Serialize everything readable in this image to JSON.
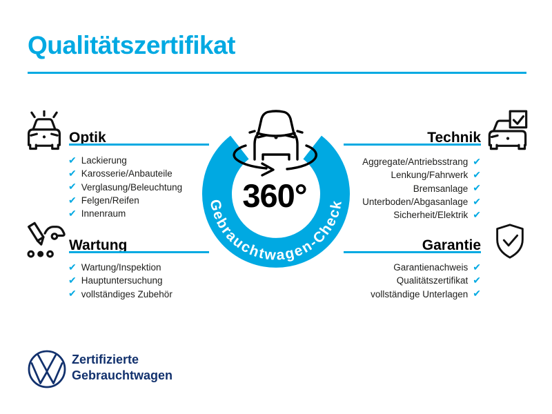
{
  "page": {
    "title": "Qualitätszertifikat",
    "accent_color": "#00a9e2",
    "navy_color": "#12316d"
  },
  "icons": {
    "check": "✔"
  },
  "sections": [
    {
      "id": "optik",
      "heading": "Optik",
      "icon": "car-shine-icon",
      "items": [
        "Lackierung",
        "Karosserie/Anbauteile",
        "Verglasung/Beleuchtung",
        "Felgen/Reifen",
        "Innenraum"
      ]
    },
    {
      "id": "wartung",
      "heading": "Wartung",
      "icon": "service-checklist-icon",
      "items": [
        "Wartung/Inspektion",
        "Hauptuntersuchung",
        "vollständiges Zubehör"
      ]
    },
    {
      "id": "technik",
      "heading": "Technik",
      "icon": "car-checkbox-icon",
      "items": [
        "Aggregate/Antriebsstrang",
        "Lenkung/Fahrwerk",
        "Bremsanlage",
        "Unterboden/Abgasanlage",
        "Sicherheit/Elektrik"
      ]
    },
    {
      "id": "garantie",
      "heading": "Garantie",
      "icon": "shield-check-icon",
      "items": [
        "Garantienachweis",
        "Qualitätszertifikat",
        "vollständige Unterlagen"
      ]
    }
  ],
  "center_badge": {
    "degree_label": "360°",
    "ring_label": "Gebrauchtwagen-Check"
  },
  "footer": {
    "line1": "Zertifizierte",
    "line2": "Gebrauchtwagen"
  }
}
